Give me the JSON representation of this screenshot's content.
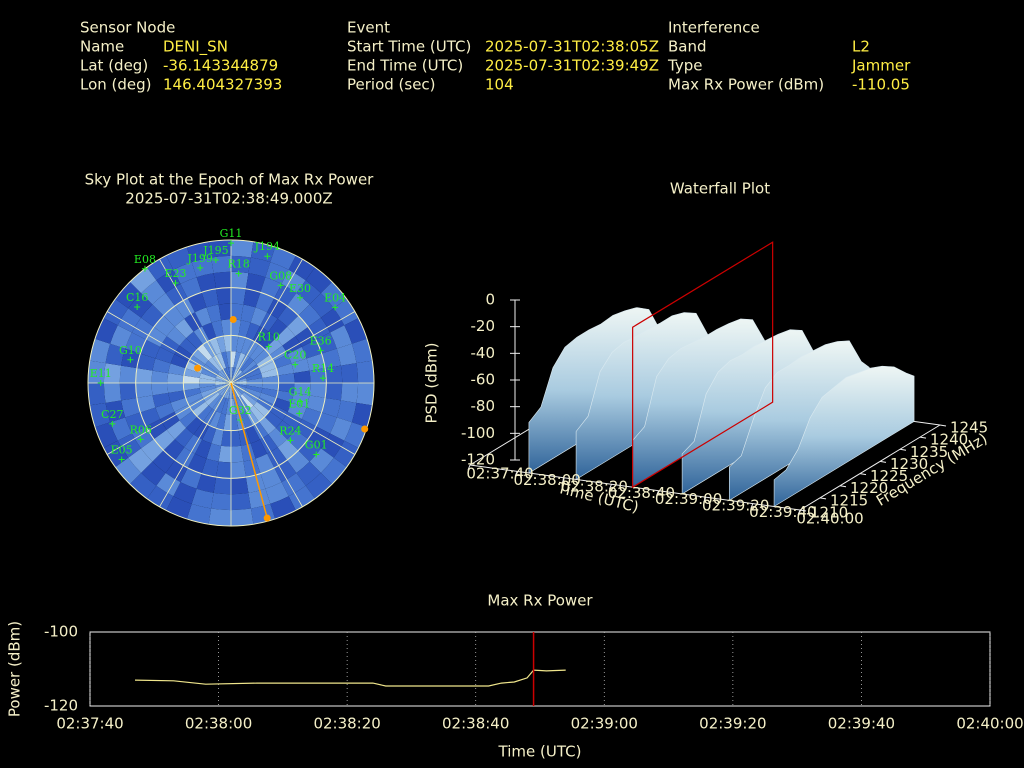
{
  "header": {
    "sections": [
      {
        "title": "Sensor Node",
        "rows": [
          [
            "Name",
            "DENI_SN"
          ],
          [
            "Lat (deg)",
            -36.143344879
          ],
          [
            "Lon (deg)",
            146.404327393
          ]
        ]
      },
      {
        "title": "Event",
        "rows": [
          [
            "Start Time (UTC)",
            "2025-07-31T02:38:05Z"
          ],
          [
            "End Time (UTC)",
            "2025-07-31T02:39:49Z"
          ],
          [
            "Period (sec)",
            104
          ]
        ]
      },
      {
        "title": "Interference",
        "rows": [
          [
            "Band",
            "L2"
          ],
          [
            "Type",
            "Jammer"
          ],
          [
            "Max Rx Power (dBm)",
            -110.05
          ]
        ]
      }
    ]
  },
  "chart_data": [
    {
      "type": "polar-scatter",
      "title": "Sky Plot at the Epoch of Max Rx Power",
      "subtitle": "2025-07-31T02:38:49.000Z",
      "rlim": [
        90,
        0
      ],
      "rticks": [
        0,
        30,
        60
      ],
      "satellites": {
        "color": "#22ee22",
        "labels": [
          "G11",
          "E08",
          "J195",
          "J199",
          "J194",
          "E23",
          "R18",
          "G08",
          "E30",
          "E04",
          "C16",
          "E36",
          "R14",
          "E11",
          "C20",
          "G14",
          "E01",
          "R24",
          "G01",
          "C27",
          "R06",
          "E05",
          "G10",
          "G32",
          "R10"
        ],
        "azimuth": [
          0,
          323,
          353,
          345,
          16,
          331,
          4,
          27,
          39,
          54,
          309,
          70,
          87,
          270,
          74,
          105,
          114,
          134,
          130,
          251,
          238,
          235,
          283,
          166,
          46
        ],
        "elevation": [
          2,
          0,
          12,
          15,
          7,
          18,
          21,
          21,
          21,
          9,
          14,
          30,
          32,
          8,
          48,
          45,
          43,
          38,
          20,
          11,
          23,
          6,
          25,
          66,
          57
        ]
      },
      "jammer": {
        "color": "#ff9900",
        "azimuth": [
          2,
          294,
          109,
          165
        ],
        "elevation": [
          50,
          67,
          1,
          2
        ]
      }
    },
    {
      "type": "waterfall3d",
      "title": "Waterfall Plot",
      "xlabel": "Time (UTC)",
      "ylabel": "Frequency (MHz)",
      "zlabel": "PSD (dBm)",
      "xlim": [
        "02:37:40",
        "02:40:00"
      ],
      "xticks": [
        "02:37:40",
        "02:38:00",
        "02:38:20",
        "02:38:40",
        "02:39:00",
        "02:39:20",
        "02:39:40",
        "02:40:00"
      ],
      "ylim": [
        1210,
        1245
      ],
      "yticks": [
        1210,
        1215,
        1220,
        1225,
        1230,
        1235,
        1240,
        1245
      ],
      "zlim": [
        -120,
        0
      ],
      "zticks": [
        -120,
        -100,
        -80,
        -60,
        -40,
        -20,
        0
      ],
      "times": [
        "02:38:05",
        "02:38:25",
        "02:38:49",
        "02:39:10",
        "02:39:30",
        "02:39:49"
      ],
      "frequencies": [
        1210,
        1213,
        1216,
        1219,
        1222,
        1225,
        1228,
        1231,
        1234,
        1237,
        1240,
        1243,
        1245
      ],
      "psd": [
        [
          -82,
          -76,
          -52,
          -42,
          -40,
          -40,
          -41,
          -40,
          -42,
          -45,
          -52,
          -74,
          -82
        ],
        [
          -84,
          -78,
          -50,
          -41,
          -39,
          -40,
          -40,
          -41,
          -41,
          -44,
          -50,
          -72,
          -80
        ],
        [
          -85,
          -80,
          -48,
          -40,
          -38,
          -39,
          -40,
          -40,
          -41,
          -43,
          -49,
          -70,
          -81
        ],
        [
          -90,
          -86,
          -56,
          -45,
          -42,
          -43,
          -42,
          -43,
          -44,
          -46,
          -52,
          -74,
          -83
        ],
        [
          -95,
          -92,
          -70,
          -52,
          -46,
          -46,
          -45,
          -46,
          -47,
          -50,
          -55,
          -76,
          -84
        ],
        [
          -100,
          -98,
          -88,
          -70,
          -60,
          -58,
          -56,
          -58,
          -60,
          -64,
          -70,
          -80,
          -86
        ]
      ],
      "marker_time": "02:38:49",
      "marker_color": "#cc0000"
    },
    {
      "type": "line",
      "title": "Max Rx Power",
      "xlabel": "Time (UTC)",
      "ylabel": "Power (dBm)",
      "xlim": [
        "02:37:40",
        "02:40:00"
      ],
      "xticks": [
        "02:37:40",
        "02:38:00",
        "02:38:20",
        "02:38:40",
        "02:39:00",
        "02:39:20",
        "02:39:40",
        "02:40:00"
      ],
      "ylim": [
        -120,
        -100
      ],
      "yticks": [
        -120,
        -100
      ],
      "grid": true,
      "color": "#f0e68c",
      "x": [
        "02:37:47",
        "02:37:53",
        "02:37:58",
        "02:38:06",
        "02:38:24",
        "02:38:26",
        "02:38:42",
        "02:38:44",
        "02:38:46",
        "02:38:48",
        "02:38:49",
        "02:38:51",
        "02:38:54"
      ],
      "values": [
        -113.0,
        -113.2,
        -114.1,
        -113.8,
        -113.8,
        -114.6,
        -114.6,
        -113.8,
        -113.5,
        -112.4,
        -110.3,
        -110.5,
        -110.3
      ],
      "marker_time": "02:38:49",
      "marker_color": "#cc0000"
    }
  ]
}
